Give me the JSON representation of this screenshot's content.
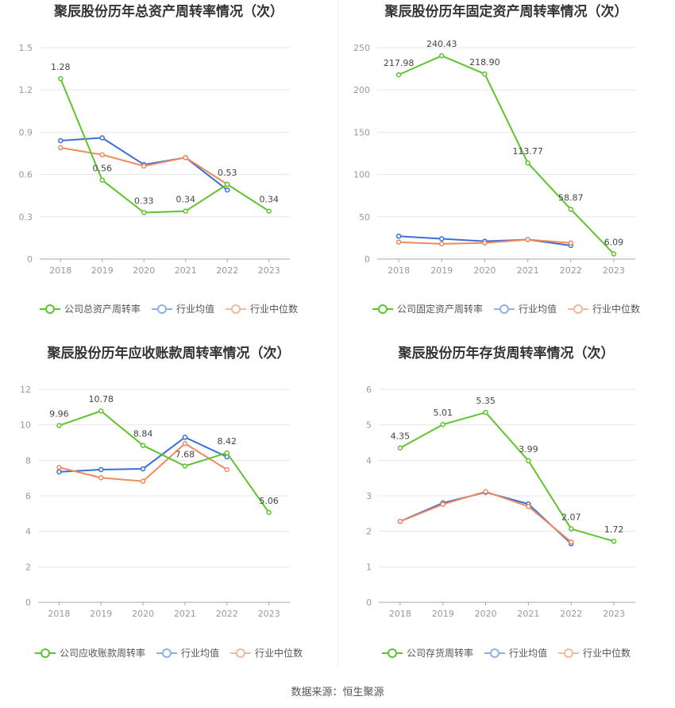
{
  "footer": {
    "source": "数据来源：恒生聚源"
  },
  "colors": {
    "company": "#5ec42d",
    "industry_avg": "#3a6fd8",
    "industry_median": "#f08a5d",
    "grid": "#e6e6f0",
    "axis": "#999999"
  },
  "chart_data": [
    {
      "type": "line",
      "title": "聚辰股份历年总资产周转率情况（次）",
      "categories": [
        "2018",
        "2019",
        "2020",
        "2021",
        "2022",
        "2023"
      ],
      "ylim": [
        0,
        1.5
      ],
      "yticks": [
        "0",
        "0.3",
        "0.6",
        "0.9",
        "1.2",
        "1.5"
      ],
      "series": [
        {
          "name": "公司总资产周转率",
          "values": [
            1.28,
            0.56,
            0.33,
            0.34,
            0.53,
            0.34
          ],
          "labels": [
            "1.28",
            "0.56",
            "0.33",
            "0.34",
            "0.53",
            "0.34"
          ]
        },
        {
          "name": "行业均值",
          "values": [
            0.84,
            0.86,
            0.67,
            0.72,
            0.49,
            null
          ]
        },
        {
          "name": "行业中位数",
          "values": [
            0.79,
            0.74,
            0.66,
            0.72,
            0.53,
            null
          ]
        }
      ]
    },
    {
      "type": "line",
      "title": "聚辰股份历年固定资产周转率情况（次）",
      "categories": [
        "2018",
        "2019",
        "2020",
        "2021",
        "2022",
        "2023"
      ],
      "ylim": [
        0,
        250
      ],
      "yticks": [
        "0",
        "50",
        "100",
        "150",
        "200",
        "250"
      ],
      "series": [
        {
          "name": "公司固定资产周转率",
          "values": [
            217.98,
            240.43,
            218.9,
            113.77,
            58.87,
            6.09
          ],
          "labels": [
            "217.98",
            "240.43",
            "218.90",
            "113.77",
            "58.87",
            "6.09"
          ]
        },
        {
          "name": "行业均值",
          "values": [
            27,
            24,
            21,
            23,
            16,
            null
          ]
        },
        {
          "name": "行业中位数",
          "values": [
            20,
            18,
            19,
            23,
            19,
            null
          ]
        }
      ]
    },
    {
      "type": "line",
      "title": "聚辰股份历年应收账款周转率情况（次）",
      "categories": [
        "2018",
        "2019",
        "2020",
        "2021",
        "2022",
        "2023"
      ],
      "ylim": [
        0,
        12
      ],
      "yticks": [
        "0",
        "2",
        "4",
        "6",
        "8",
        "10",
        "12"
      ],
      "series": [
        {
          "name": "公司应收账款周转率",
          "values": [
            9.96,
            10.78,
            8.84,
            7.68,
            8.42,
            5.06
          ],
          "labels": [
            "9.96",
            "10.78",
            "8.84",
            "7.68",
            "8.42",
            "5.06"
          ]
        },
        {
          "name": "行业均值",
          "values": [
            7.35,
            7.48,
            7.52,
            9.3,
            8.2,
            null
          ]
        },
        {
          "name": "行业中位数",
          "values": [
            7.6,
            7.02,
            6.82,
            8.95,
            7.48,
            null
          ]
        }
      ]
    },
    {
      "type": "line",
      "title": "聚辰股份历年存货周转率情况（次）",
      "categories": [
        "2018",
        "2019",
        "2020",
        "2021",
        "2022",
        "2023"
      ],
      "ylim": [
        0,
        6
      ],
      "yticks": [
        "0",
        "1",
        "2",
        "3",
        "4",
        "5",
        "6"
      ],
      "series": [
        {
          "name": "公司存货周转率",
          "values": [
            4.35,
            5.01,
            5.35,
            3.99,
            2.07,
            1.72
          ],
          "labels": [
            "4.35",
            "5.01",
            "5.35",
            "3.99",
            "2.07",
            "1.72"
          ]
        },
        {
          "name": "行业均值",
          "values": [
            2.28,
            2.8,
            3.1,
            2.77,
            1.65,
            null
          ]
        },
        {
          "name": "行业中位数",
          "values": [
            2.28,
            2.76,
            3.12,
            2.7,
            1.7,
            null
          ]
        }
      ]
    }
  ]
}
